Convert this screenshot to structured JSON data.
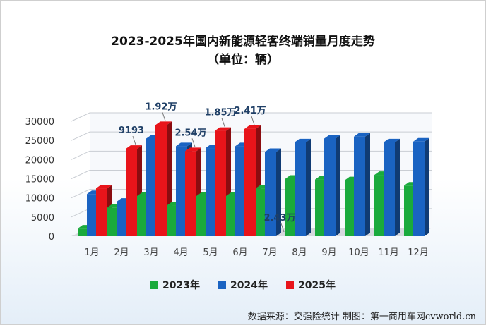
{
  "title": "2023-2025年国内新能源轻客终端销量月度走势",
  "subtitle": "（单位：辆）",
  "source": "数据来源：交强险统计  制图：第一商用车网cvworld.cn",
  "chart_data": {
    "type": "bar",
    "categories": [
      "1月",
      "2月",
      "3月",
      "4月",
      "5月",
      "6月",
      "7月",
      "8月",
      "9月",
      "10月",
      "11月",
      "12月"
    ],
    "ylim": [
      0,
      30000
    ],
    "yticks": [
      "0",
      "5000",
      "10000",
      "15000",
      "20000",
      "25000",
      "30000"
    ],
    "grid": true,
    "legend_position": "bottom",
    "series": [
      {
        "name": "2023年",
        "color": "#1aaa3c",
        "values": [
          2000,
          7500,
          10500,
          8000,
          10500,
          10500,
          12500,
          15000,
          14800,
          14600,
          16000,
          13200
        ]
      },
      {
        "name": "2024年",
        "color": "#1a63c2",
        "values": [
          11000,
          9000,
          25500,
          23500,
          23000,
          23500,
          22000,
          24500,
          25500,
          26000,
          24500,
          24700
        ]
      },
      {
        "name": "2025年",
        "color": "#e8141a",
        "values": [
          12500,
          22800,
          29000,
          22200,
          27500,
          28000,
          null,
          null,
          null,
          null,
          null,
          null
        ]
      }
    ],
    "annotations": [
      {
        "text": "9193",
        "category_index": 1
      },
      {
        "text": "1.92万",
        "category_index": 2
      },
      {
        "text": "2.54万",
        "category_index": 3
      },
      {
        "text": "1.85万",
        "category_index": 4
      },
      {
        "text": "2.41万",
        "category_index": 5
      },
      {
        "text": "2.43万",
        "category_index": 6
      }
    ]
  }
}
